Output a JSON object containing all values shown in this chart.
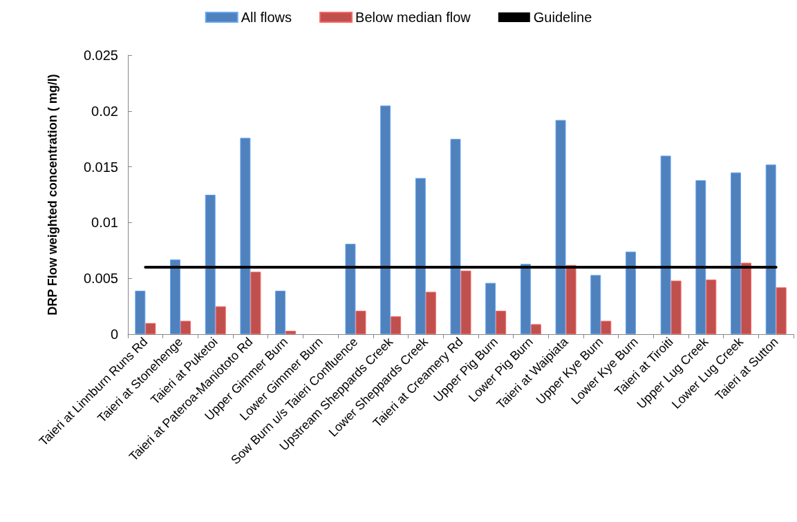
{
  "chart_data": {
    "type": "bar",
    "ylabel": "DRP Flow weighted concentration ( mg/l)",
    "categories": [
      "Taieri at Linnburn Runs Rd",
      "Taieri at Stonehenge",
      "Taieri at Puketoi",
      "Taieri at Pateroa-Maniototo Rd",
      "Upper Gimmer Burn",
      "Lower Gimmer Burn",
      "Sow Burn u/s Taieri Confluence",
      "Upstream Sheppards Creek",
      "Lower Sheppards Creek",
      "Taieri at Creamery Rd",
      "Upper Pig Burn",
      "Lower Pig Burn",
      "Taieri at Waipiata",
      "Upper Kye Burn",
      "Lower Kye Burn",
      "Taieri at Tiroiti",
      "Upper Lug Creek",
      "Lower Lug Creek",
      "Taieri at Sutton"
    ],
    "series": [
      {
        "name": "All flows",
        "color": "#4f81bd",
        "values": [
          0.0039,
          0.0067,
          0.0125,
          0.0176,
          0.0039,
          null,
          0.0081,
          0.0205,
          0.014,
          0.0175,
          0.0046,
          0.0063,
          0.0192,
          0.0053,
          0.0074,
          0.016,
          0.0138,
          0.0145,
          0.0152
        ]
      },
      {
        "name": "Below median flow",
        "color": "#c0504d",
        "values": [
          0.001,
          0.0012,
          0.0025,
          0.0056,
          0.0003,
          null,
          0.0021,
          0.0016,
          0.0038,
          0.0057,
          0.0021,
          0.0009,
          0.0062,
          0.0012,
          null,
          0.0048,
          0.0049,
          0.0064,
          0.0042
        ]
      },
      {
        "name": "Guideline",
        "type": "line",
        "color": "#000000",
        "values": [
          0.006,
          0.006,
          0.006,
          0.006,
          0.006,
          0.006,
          0.006,
          0.006,
          0.006,
          0.006,
          0.006,
          0.006,
          0.006,
          0.006,
          0.006,
          0.006,
          0.006,
          0.006,
          0.006
        ]
      }
    ],
    "ylim": [
      0,
      0.025
    ],
    "yticks": [
      0,
      0.005,
      0.01,
      0.015,
      0.02,
      0.025
    ],
    "grid": false,
    "legend": "top",
    "marker": "none",
    "line_style": "solid"
  }
}
